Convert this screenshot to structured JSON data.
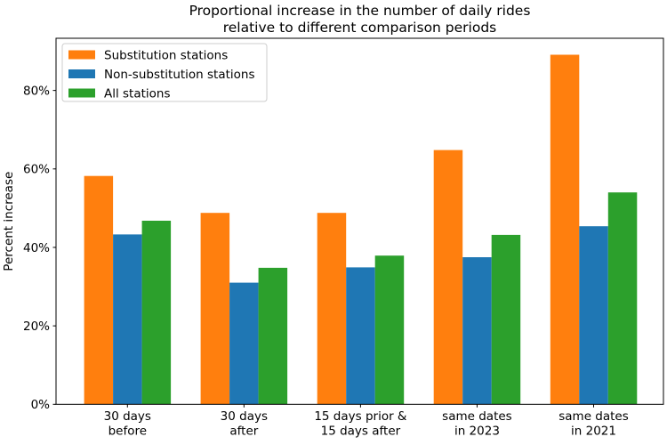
{
  "figure": {
    "background": "#ffffff"
  },
  "chart_data": {
    "type": "bar",
    "title": "Proportional increase in the number of daily rides\nrelative to different comparison periods",
    "title_lines": [
      "Proportional increase in the number of daily rides",
      "relative to different comparison periods"
    ],
    "ylabel": "Percent increase",
    "xlabel": "",
    "categories": [
      "30 days\nbefore",
      "30 days\nafter",
      "15 days prior &\n15 days after",
      "same dates\nin 2023",
      "same dates\nin 2021"
    ],
    "category_lines": [
      [
        "30 days",
        "before"
      ],
      [
        "30 days",
        "after"
      ],
      [
        "15 days prior &",
        "15 days after"
      ],
      [
        "same dates",
        "in 2023"
      ],
      [
        "same dates",
        "in 2021"
      ]
    ],
    "series": [
      {
        "name": "Substitution stations",
        "color": "#ff7f0e",
        "values": [
          58.2,
          48.8,
          48.8,
          64.8,
          89.1
        ]
      },
      {
        "name": "Non-substitution stations",
        "color": "#1f77b4",
        "values": [
          43.3,
          31.0,
          34.9,
          37.5,
          45.4
        ]
      },
      {
        "name": "All stations",
        "color": "#2ca02c",
        "values": [
          46.8,
          34.8,
          37.9,
          43.2,
          54.0
        ]
      }
    ],
    "yticks": [
      0,
      20,
      40,
      60,
      80
    ],
    "ytick_labels": [
      "0%",
      "20%",
      "40%",
      "60%",
      "80%"
    ],
    "ylim": [
      0,
      93.3
    ],
    "grid": false,
    "legend": {
      "position": "upper left",
      "entries": [
        "Substitution stations",
        "Non-substitution stations",
        "All stations"
      ],
      "border_color": "#cccccc",
      "background": "#ffffff"
    },
    "axis_color": "#000000",
    "text_color": "#000000"
  }
}
